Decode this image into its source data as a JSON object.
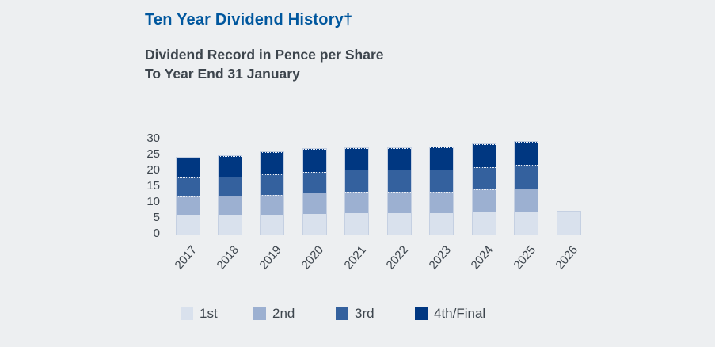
{
  "chart_data": {
    "type": "bar",
    "stacked": true,
    "title": "Ten Year Dividend History†",
    "subtitle_line1": "Dividend Record in Pence per Share",
    "subtitle_line2": "To Year End 31 January",
    "categories": [
      "2017",
      "2018",
      "2019",
      "2020",
      "2021",
      "2022",
      "2023",
      "2024",
      "2025",
      "2026"
    ],
    "series": [
      {
        "name": "1st",
        "color": "#d9e1ed",
        "values": [
          6.0,
          6.1,
          6.3,
          6.6,
          6.8,
          6.8,
          6.8,
          7.1,
          7.3,
          7.3
        ]
      },
      {
        "name": "2nd",
        "color": "#9cb0d1",
        "values": [
          6.0,
          6.1,
          6.3,
          6.6,
          6.8,
          6.8,
          6.8,
          7.1,
          7.3,
          0
        ]
      },
      {
        "name": "3rd",
        "color": "#34619e",
        "values": [
          6.0,
          6.1,
          6.3,
          6.6,
          6.8,
          6.8,
          6.8,
          7.1,
          7.3,
          0
        ]
      },
      {
        "name": "4th/Final",
        "color": "#003781",
        "values": [
          6.2,
          6.5,
          7.0,
          7.3,
          6.8,
          6.9,
          7.2,
          7.1,
          7.3,
          0
        ]
      }
    ],
    "totals": [
      24.2,
      24.8,
      25.9,
      27.1,
      27.2,
      27.3,
      27.6,
      28.4,
      29.2,
      7.3
    ],
    "ylabel": "",
    "xlabel": "",
    "ylim": [
      0,
      30
    ],
    "y_ticks": [
      0,
      5,
      10,
      15,
      20,
      25,
      30
    ],
    "grid": false,
    "legend_position": "bottom"
  },
  "colors": {
    "background": "#edeff1",
    "title_blue": "#00579e",
    "text_gray": "#3d454d",
    "allianz_navy": "#003781"
  }
}
